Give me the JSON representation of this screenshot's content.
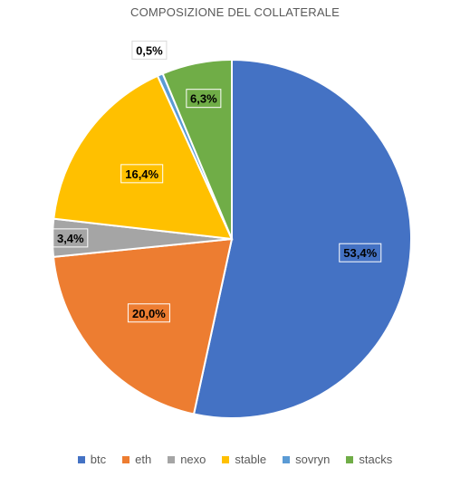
{
  "chart_data": {
    "type": "pie",
    "title": "COMPOSIZIONE DEL COLLATERALE",
    "categories": [
      "btc",
      "eth",
      "nexo",
      "stable",
      "sovryn",
      "stacks"
    ],
    "values": [
      53.4,
      20.0,
      3.4,
      16.4,
      0.5,
      6.3
    ],
    "labels": [
      "53,4%",
      "20,0%",
      "3,4%",
      "16,4%",
      "0,5%",
      "6,3%"
    ],
    "colors": [
      "#4472C4",
      "#ED7D31",
      "#A5A5A5",
      "#FFC000",
      "#5B9BD5",
      "#70AD47"
    ],
    "legend": "bottom"
  }
}
